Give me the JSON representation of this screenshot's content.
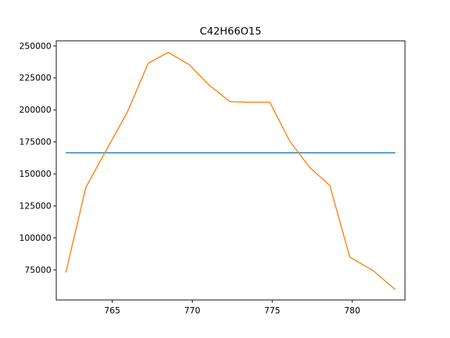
{
  "chart_data": {
    "type": "line",
    "title": "C42H66O15",
    "xlabel": "",
    "ylabel": "",
    "xlim": [
      761.5,
      783.3
    ],
    "ylim": [
      51500,
      254000
    ],
    "x_ticks": [
      765,
      770,
      775,
      780
    ],
    "y_ticks": [
      75000,
      100000,
      125000,
      150000,
      175000,
      200000,
      225000,
      250000
    ],
    "grid": false,
    "series": [
      {
        "color": "#1f77b4",
        "x": [
          762.1,
          782.7
        ],
        "y": [
          166500,
          166500
        ]
      },
      {
        "color": "#ff7f0e",
        "x": [
          762.1,
          763.35,
          764.6,
          765.95,
          767.25,
          768.5,
          769.8,
          771.05,
          772.35,
          773.55,
          774.85,
          776.1,
          777.35,
          778.6,
          779.85,
          781.3,
          782.7
        ],
        "y": [
          73000,
          139500,
          168000,
          198500,
          236500,
          245000,
          235500,
          219500,
          206500,
          206000,
          206000,
          175500,
          155000,
          141000,
          85000,
          74500,
          59500
        ]
      }
    ]
  }
}
